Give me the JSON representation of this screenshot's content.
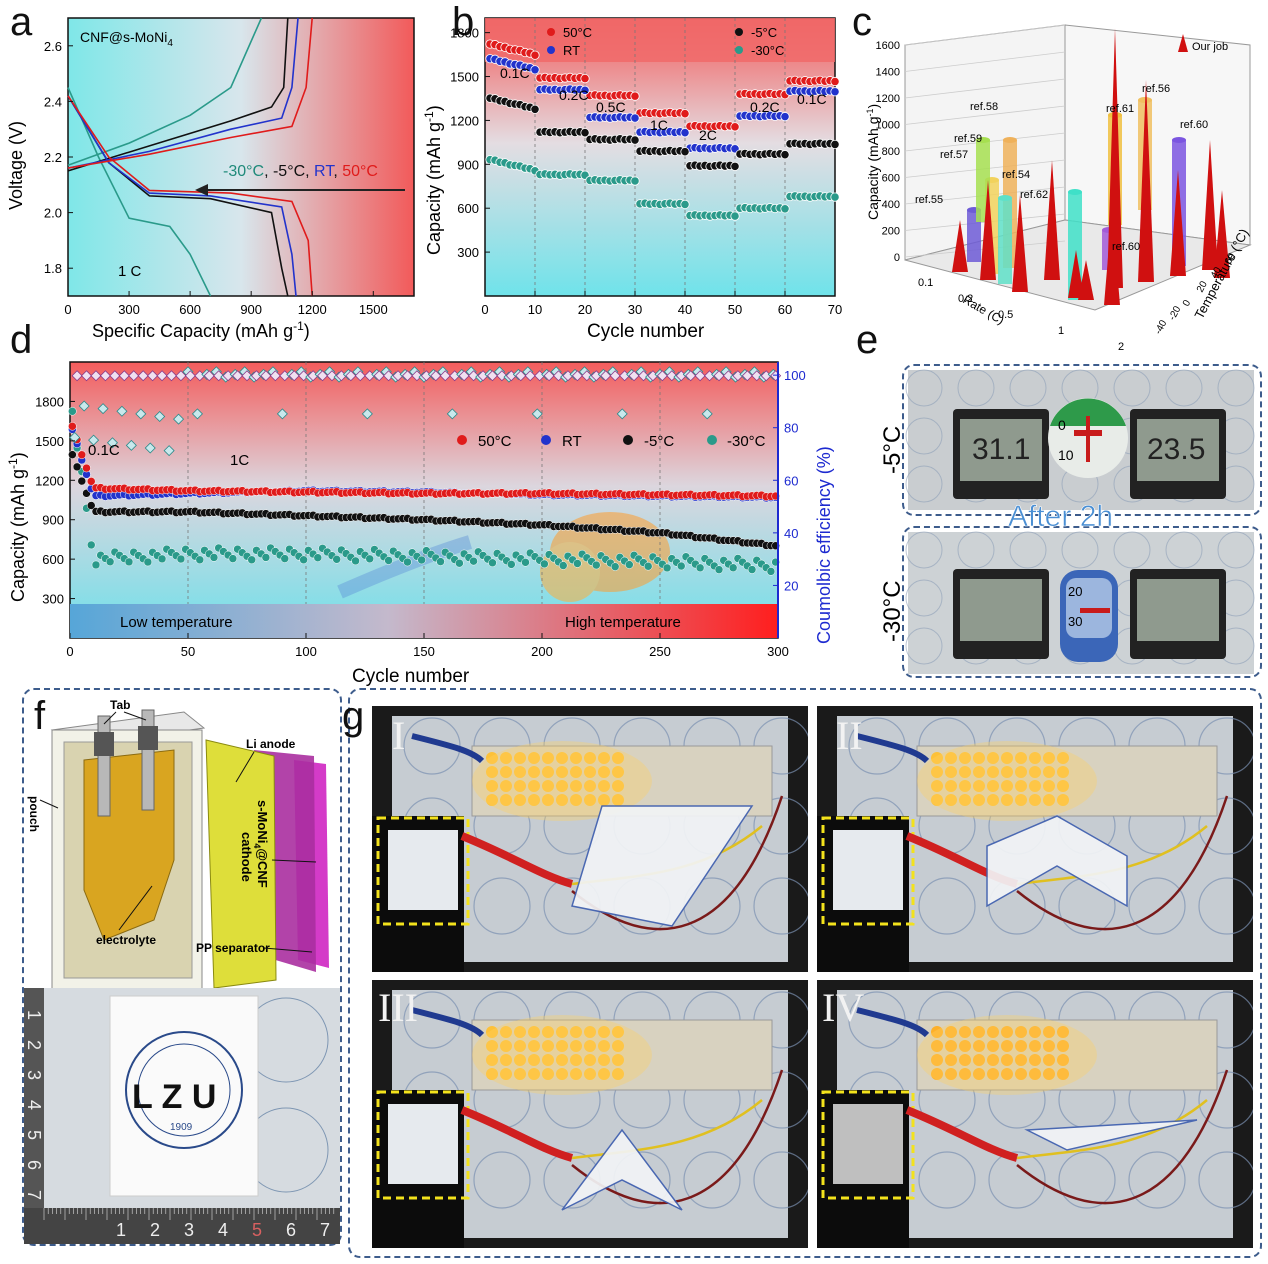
{
  "letters": {
    "a": "a",
    "b": "b",
    "c": "c",
    "d": "d",
    "e": "e",
    "f": "f",
    "g": "g"
  },
  "panel_a": {
    "title": "CNF@s-MoNi",
    "title_sub": "4",
    "xlabel": "Specific Capacity (mAh g",
    "xlabel_sup": "-1",
    "xlabel_end": ")",
    "ylabel": "Voltage (V)",
    "rate_label": "1 C",
    "legend": [
      "-30°C",
      ", -5°C, ",
      "RT",
      ", ",
      "50°C"
    ],
    "legend_colors": [
      "#1f8a7a",
      "#111111",
      "#2233cc",
      "#e01b1b"
    ]
  },
  "panel_b": {
    "xlabel": "Cycle number",
    "ylabel": "Capacity (mAh g",
    "ylabel_sup": "-1",
    "ylabel_end": ")",
    "legend": [
      "50°C",
      "RT",
      "-5°C",
      "-30°C"
    ],
    "rate_labels": [
      "0.1C",
      "0.2C",
      "0.5C",
      "1C",
      "2C",
      "0.2C",
      "0.1C"
    ]
  },
  "panel_c": {
    "ylabel": "Capacity (mAh g",
    "ylabel_sup": "-1",
    "ylabel_end": ")",
    "xlabel": "Rate (C)",
    "zlabel": "Temperature (°C)",
    "legend": "Our job",
    "refs": [
      "ref.55",
      "ref.57",
      "ref.59",
      "ref.58",
      "ref.54",
      "ref.62",
      "ref.60",
      "ref.61",
      "ref.56",
      "ref.60"
    ],
    "y_ticks": [
      "1600",
      "1400",
      "1200",
      "1000",
      "800",
      "600",
      "400",
      "200",
      "0"
    ],
    "rate_ticks": [
      "0.1",
      "0.2",
      "0.5",
      "1",
      "2"
    ],
    "temp_ticks": [
      "60",
      "40",
      "20",
      "0",
      "-20",
      "-40"
    ]
  },
  "panel_d": {
    "xlabel": "Cycle number",
    "ylabel": "Capacity (mAh g",
    "ylabel_sup": "-1",
    "ylabel_end": ")",
    "y2label": "Coumolbic efficiency (%)",
    "legend": [
      "50°C",
      "RT",
      "-5°C",
      "-30°C"
    ],
    "rate1": "0.1C",
    "rate2": "1C",
    "band_left": "Low temperature",
    "band_right": "High temperature"
  },
  "panel_e": {
    "row1": "-5°C",
    "row2": "-30°C",
    "caption": "After 2h",
    "thermo1": [
      "0",
      "10"
    ],
    "thermo2": [
      "20",
      "30"
    ]
  },
  "panel_f": {
    "tab": "Tab",
    "pouch": "pouch",
    "li_anode": "Li anode",
    "cathode": "s-MoNi",
    "cathode_sub": "4",
    "cathode_end": "@CNF",
    "cathode_line2": "cathode",
    "electrolyte": "electrolyte",
    "separator": "PP separator",
    "photo_text": "L  Z  U",
    "photo_year": "1909",
    "ruler_h": [
      "1",
      "2",
      "3",
      "4",
      "5",
      "6",
      "7"
    ],
    "ruler_v": [
      "1",
      "2",
      "3",
      "4",
      "5",
      "6",
      "7"
    ]
  },
  "panel_g": {
    "labels": [
      "I",
      "II",
      "III",
      "IV"
    ]
  },
  "colors": {
    "c50": "#e01b1b",
    "rt": "#2233cc",
    "m5": "#111111",
    "m30": "#2a9a8a",
    "dash": "#3d5c8c"
  },
  "chart_data": [
    {
      "type": "line",
      "panel": "a",
      "xlabel": "Specific Capacity (mAh g-1)",
      "ylabel": "Voltage (V)",
      "xlim": [
        0,
        1700
      ],
      "ylim": [
        1.7,
        2.7
      ],
      "x_ticks": [
        0,
        300,
        600,
        900,
        1200,
        1500
      ],
      "y_ticks": [
        1.8,
        2.0,
        2.2,
        2.4,
        2.6
      ],
      "series": [
        {
          "name": "-30°C",
          "discharge": [
            [
              0,
              2.45
            ],
            [
              150,
              2.2
            ],
            [
              300,
              1.98
            ],
            [
              500,
              1.95
            ],
            [
              600,
              1.85
            ],
            [
              700,
              1.7
            ]
          ],
          "charge": [
            [
              0,
              2.17
            ],
            [
              300,
              2.25
            ],
            [
              600,
              2.35
            ],
            [
              800,
              2.45
            ],
            [
              950,
              2.7
            ]
          ]
        },
        {
          "name": "-5°C",
          "discharge": [
            [
              0,
              2.42
            ],
            [
              200,
              2.18
            ],
            [
              400,
              2.06
            ],
            [
              700,
              2.05
            ],
            [
              1000,
              2.0
            ],
            [
              1050,
              1.8
            ],
            [
              1080,
              1.7
            ]
          ],
          "charge": [
            [
              0,
              2.15
            ],
            [
              400,
              2.24
            ],
            [
              800,
              2.33
            ],
            [
              1000,
              2.38
            ],
            [
              1060,
              2.45
            ],
            [
              1080,
              2.7
            ]
          ]
        },
        {
          "name": "RT",
          "discharge": [
            [
              0,
              2.42
            ],
            [
              200,
              2.18
            ],
            [
              400,
              2.07
            ],
            [
              700,
              2.06
            ],
            [
              1050,
              2.02
            ],
            [
              1100,
              1.85
            ],
            [
              1120,
              1.7
            ]
          ],
          "charge": [
            [
              0,
              2.16
            ],
            [
              400,
              2.22
            ],
            [
              800,
              2.3
            ],
            [
              1050,
              2.34
            ],
            [
              1100,
              2.45
            ],
            [
              1130,
              2.7
            ]
          ]
        },
        {
          "name": "50°C",
          "discharge": [
            [
              0,
              2.42
            ],
            [
              200,
              2.2
            ],
            [
              400,
              2.08
            ],
            [
              800,
              2.07
            ],
            [
              1100,
              2.04
            ],
            [
              1180,
              1.9
            ],
            [
              1200,
              1.7
            ]
          ],
          "charge": [
            [
              0,
              2.16
            ],
            [
              400,
              2.21
            ],
            [
              800,
              2.27
            ],
            [
              1100,
              2.31
            ],
            [
              1170,
              2.45
            ],
            [
              1200,
              2.7
            ]
          ]
        }
      ]
    },
    {
      "type": "scatter",
      "panel": "b",
      "xlabel": "Cycle number",
      "ylabel": "Capacity (mAh g-1)",
      "xlim": [
        0,
        70
      ],
      "ylim": [
        0,
        1900
      ],
      "x_ticks": [
        0,
        10,
        20,
        30,
        40,
        50,
        60,
        70
      ],
      "y_ticks": [
        300,
        600,
        900,
        1200,
        1500,
        1800
      ],
      "segments": [
        [
          1,
          10
        ],
        [
          11,
          20
        ],
        [
          21,
          30
        ],
        [
          31,
          40
        ],
        [
          41,
          50
        ],
        [
          51,
          60
        ],
        [
          61,
          70
        ]
      ],
      "series": [
        {
          "name": "50°C",
          "values": [
            1650,
            1490,
            1370,
            1250,
            1160,
            1380,
            1470
          ]
        },
        {
          "name": "RT",
          "values": [
            1550,
            1410,
            1220,
            1120,
            1010,
            1230,
            1400
          ]
        },
        {
          "name": "-5°C",
          "values": [
            1280,
            1120,
            1070,
            990,
            890,
            970,
            1040
          ]
        },
        {
          "name": "-30°C",
          "values": [
            860,
            830,
            790,
            630,
            550,
            600,
            680
          ]
        }
      ]
    },
    {
      "type": "bar",
      "panel": "c",
      "ylabel": "Capacity (mAh g-1)",
      "xlabel": "Rate (C)",
      "zlabel": "Temperature (°C)",
      "ylim": [
        0,
        1600
      ]
    },
    {
      "type": "scatter",
      "panel": "d",
      "xlabel": "Cycle number",
      "ylabel": "Capacity (mAh g-1)",
      "y2label": "Coumolbic efficiency (%)",
      "xlim": [
        0,
        300
      ],
      "ylim": [
        0,
        2100
      ],
      "y2lim": [
        0,
        105
      ],
      "x_ticks": [
        0,
        50,
        100,
        150,
        200,
        250,
        300
      ],
      "y_ticks": [
        300,
        600,
        900,
        1200,
        1500,
        1800
      ],
      "y2_ticks": [
        20,
        40,
        60,
        80,
        100
      ],
      "series": [
        {
          "name": "50°C",
          "points": [
            [
              5,
              1400
            ],
            [
              10,
              1140
            ],
            [
              50,
              1120
            ],
            [
              100,
              1110
            ],
            [
              150,
              1100
            ],
            [
              200,
              1100
            ],
            [
              250,
              1090
            ],
            [
              300,
              1080
            ]
          ]
        },
        {
          "name": "RT",
          "points": [
            [
              5,
              1360
            ],
            [
              10,
              1080
            ],
            [
              50,
              1100
            ],
            [
              100,
              1120
            ],
            [
              150,
              1110
            ],
            [
              200,
              1090
            ],
            [
              250,
              1080
            ],
            [
              300,
              1070
            ]
          ]
        },
        {
          "name": "-5°C",
          "points": [
            [
              5,
              1200
            ],
            [
              10,
              960
            ],
            [
              50,
              960
            ],
            [
              100,
              930
            ],
            [
              150,
              900
            ],
            [
              200,
              860
            ],
            [
              250,
              800
            ],
            [
              300,
              700
            ]
          ]
        },
        {
          "name": "-30°C",
          "points": [
            [
              5,
              1230
            ],
            [
              10,
              600
            ],
            [
              50,
              640
            ],
            [
              100,
              640
            ],
            [
              150,
              620
            ],
            [
              200,
              600
            ],
            [
              250,
              580
            ],
            [
              300,
              550
            ]
          ]
        }
      ]
    }
  ]
}
